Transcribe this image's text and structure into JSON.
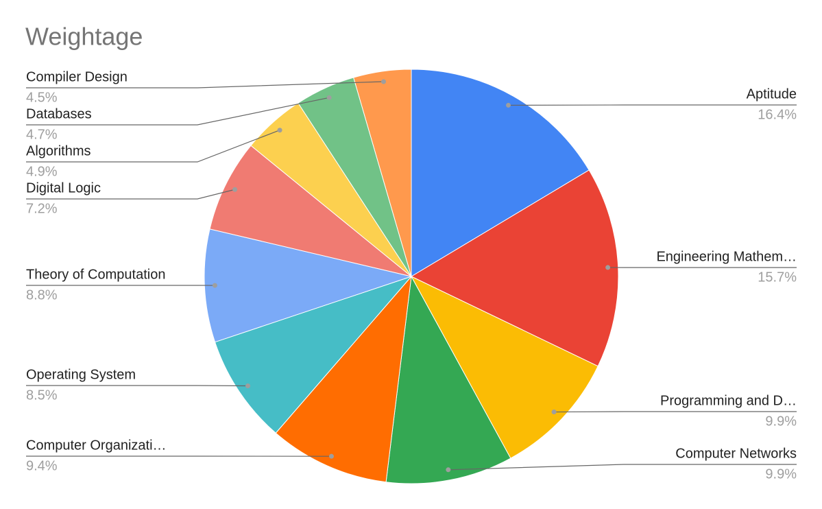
{
  "chart_data": {
    "type": "pie",
    "title": "Weightage",
    "categories": [
      "Aptitude",
      "Engineering Mathem…",
      "Programming and D…",
      "Computer Networks",
      "Computer Organizati…",
      "Operating System",
      "Theory of Computation",
      "Digital Logic",
      "Algorithms",
      "Databases",
      "Compiler Design"
    ],
    "values": [
      16.4,
      15.7,
      9.9,
      9.9,
      9.4,
      8.5,
      8.8,
      7.2,
      4.9,
      4.7,
      4.5
    ],
    "value_labels": [
      "16.4%",
      "15.7%",
      "9.9%",
      "9.9%",
      "9.4%",
      "8.5%",
      "8.8%",
      "7.2%",
      "4.9%",
      "4.7%",
      "4.5%"
    ],
    "colors": [
      "#4285f4",
      "#ea4335",
      "#fbbc04",
      "#34a853",
      "#ff6d01",
      "#46bdc6",
      "#7baaf7",
      "#f07b72",
      "#fcd04f",
      "#71c287",
      "#ff994d"
    ]
  }
}
